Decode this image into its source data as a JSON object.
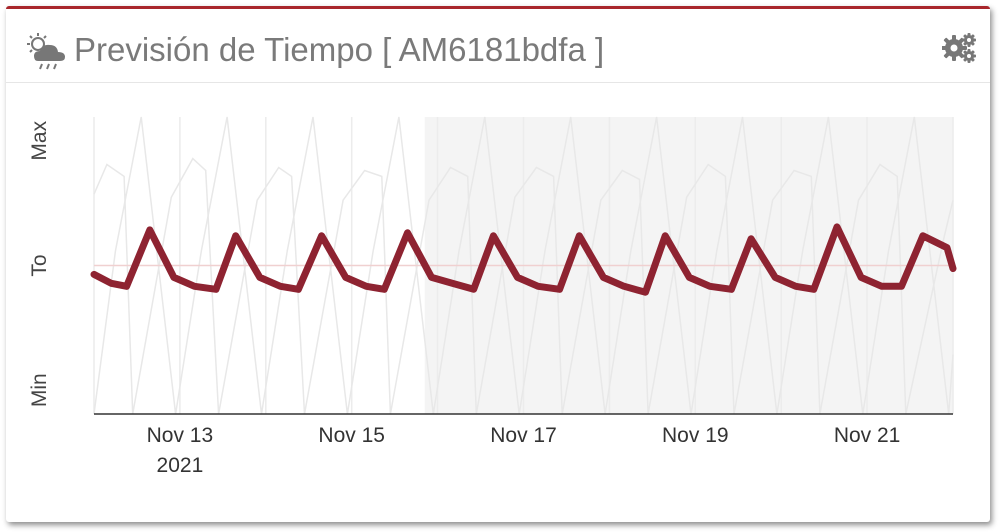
{
  "header": {
    "title": "Previsión de Tiempo [ AM6181bdfa ]",
    "weather_icon": "weather-cloud-sun-rain-icon",
    "settings_icon": "gears-icon"
  },
  "colors": {
    "accent": "#a8262b",
    "series": "#8e2331",
    "band": "#f4f4f4",
    "faint": "#e8e8e8"
  },
  "chart_data": {
    "type": "line",
    "title": "",
    "xlabel": "",
    "ylabel": "",
    "y_ticks": [
      "Max",
      "To",
      "Min"
    ],
    "x_ticks": [
      {
        "label": "Nov 13",
        "sub": "2021"
      },
      {
        "label": "Nov 15",
        "sub": ""
      },
      {
        "label": "Nov 17",
        "sub": ""
      },
      {
        "label": "Nov 19",
        "sub": ""
      },
      {
        "label": "Nov 21",
        "sub": ""
      }
    ],
    "x_range_days": [
      12.0,
      22.0
    ],
    "shaded_range_days": [
      15.85,
      22.0
    ],
    "y_range": [
      0,
      1
    ],
    "grid": false,
    "series": [
      {
        "kind": "main",
        "x_days": [
          12.0,
          12.2,
          12.38,
          12.65,
          12.93,
          13.17,
          13.42,
          13.65,
          13.93,
          14.17,
          14.38,
          14.65,
          14.93,
          15.17,
          15.38,
          15.65,
          15.93,
          16.17,
          16.42,
          16.65,
          16.93,
          17.17,
          17.42,
          17.65,
          17.93,
          18.17,
          18.42,
          18.65,
          18.93,
          19.17,
          19.42,
          19.65,
          19.93,
          20.17,
          20.38,
          20.65,
          20.93,
          21.17,
          21.4,
          21.65,
          21.93,
          22.0
        ],
        "y": [
          0.47,
          0.44,
          0.43,
          0.62,
          0.46,
          0.43,
          0.42,
          0.6,
          0.46,
          0.43,
          0.42,
          0.6,
          0.46,
          0.43,
          0.42,
          0.61,
          0.46,
          0.44,
          0.42,
          0.6,
          0.46,
          0.43,
          0.42,
          0.6,
          0.46,
          0.43,
          0.41,
          0.6,
          0.46,
          0.43,
          0.42,
          0.59,
          0.46,
          0.43,
          0.42,
          0.63,
          0.46,
          0.43,
          0.43,
          0.6,
          0.56,
          0.49
        ]
      },
      {
        "kind": "max-faint",
        "x_days": [
          12.0,
          12.15,
          12.35,
          12.45,
          12.9,
          13.15,
          13.3,
          13.45,
          13.9,
          14.15,
          14.3,
          14.45,
          14.9,
          15.15,
          15.35,
          15.45,
          15.9,
          16.15,
          16.35,
          16.45,
          16.9,
          17.15,
          17.35,
          17.45,
          17.9,
          18.15,
          18.35,
          18.45,
          18.9,
          19.15,
          19.35,
          19.45,
          19.9,
          20.15,
          20.35,
          20.45,
          20.9,
          21.15,
          21.35,
          21.45,
          21.9,
          22.0
        ],
        "y": [
          0.74,
          0.84,
          0.8,
          0.0,
          0.73,
          0.86,
          0.82,
          0.0,
          0.72,
          0.83,
          0.8,
          0.0,
          0.72,
          0.82,
          0.8,
          0.0,
          0.72,
          0.83,
          0.8,
          0.0,
          0.73,
          0.83,
          0.8,
          0.0,
          0.72,
          0.82,
          0.79,
          0.0,
          0.73,
          0.84,
          0.8,
          0.0,
          0.72,
          0.82,
          0.8,
          0.0,
          0.72,
          0.84,
          0.8,
          0.0,
          0.6,
          0.72
        ]
      },
      {
        "kind": "min-faint",
        "x_days": [
          12.0,
          12.25,
          12.55,
          12.95,
          13.25,
          13.55,
          13.95,
          14.25,
          14.55,
          14.95,
          15.25,
          15.55,
          15.95,
          16.25,
          16.55,
          16.95,
          17.25,
          17.55,
          17.95,
          18.25,
          18.55,
          18.95,
          19.25,
          19.55,
          19.95,
          20.25,
          20.55,
          20.95,
          21.25,
          21.55,
          21.95,
          22.0
        ],
        "y": [
          0.0,
          0.55,
          1.0,
          0.0,
          0.55,
          1.0,
          0.0,
          0.55,
          1.0,
          0.0,
          0.55,
          1.0,
          0.0,
          0.55,
          1.0,
          0.0,
          0.55,
          1.0,
          0.0,
          0.55,
          1.0,
          0.0,
          0.55,
          1.0,
          0.0,
          0.55,
          1.0,
          0.0,
          0.55,
          1.0,
          0.0,
          0.2
        ]
      }
    ],
    "to_line_y": 0.5
  }
}
